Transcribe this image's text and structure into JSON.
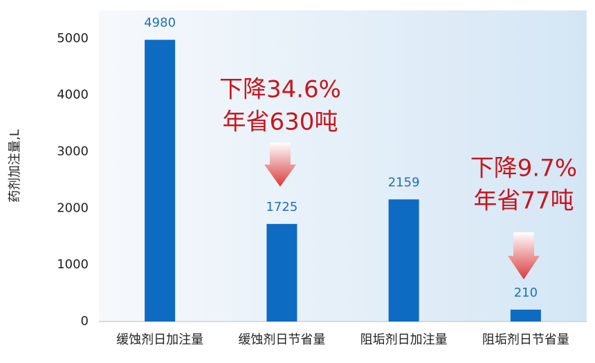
{
  "chart_data": {
    "type": "bar",
    "y_label": "药剂加注量,L",
    "categories": [
      "缓蚀剂日加注量",
      "缓蚀剂日节省量",
      "阻垢剂日加注量",
      "阻垢剂日节省量"
    ],
    "values": [
      4980,
      1725,
      2159,
      210
    ],
    "color": "#0e6bc2",
    "ylim": [
      0,
      5500
    ],
    "yticks": [
      0,
      1000,
      2000,
      3000,
      4000,
      5000
    ],
    "grid": false,
    "annotations": [
      [
        "下降34.6%",
        "年省630吨"
      ],
      [
        "下降9.7%",
        "年省77吨"
      ]
    ]
  }
}
